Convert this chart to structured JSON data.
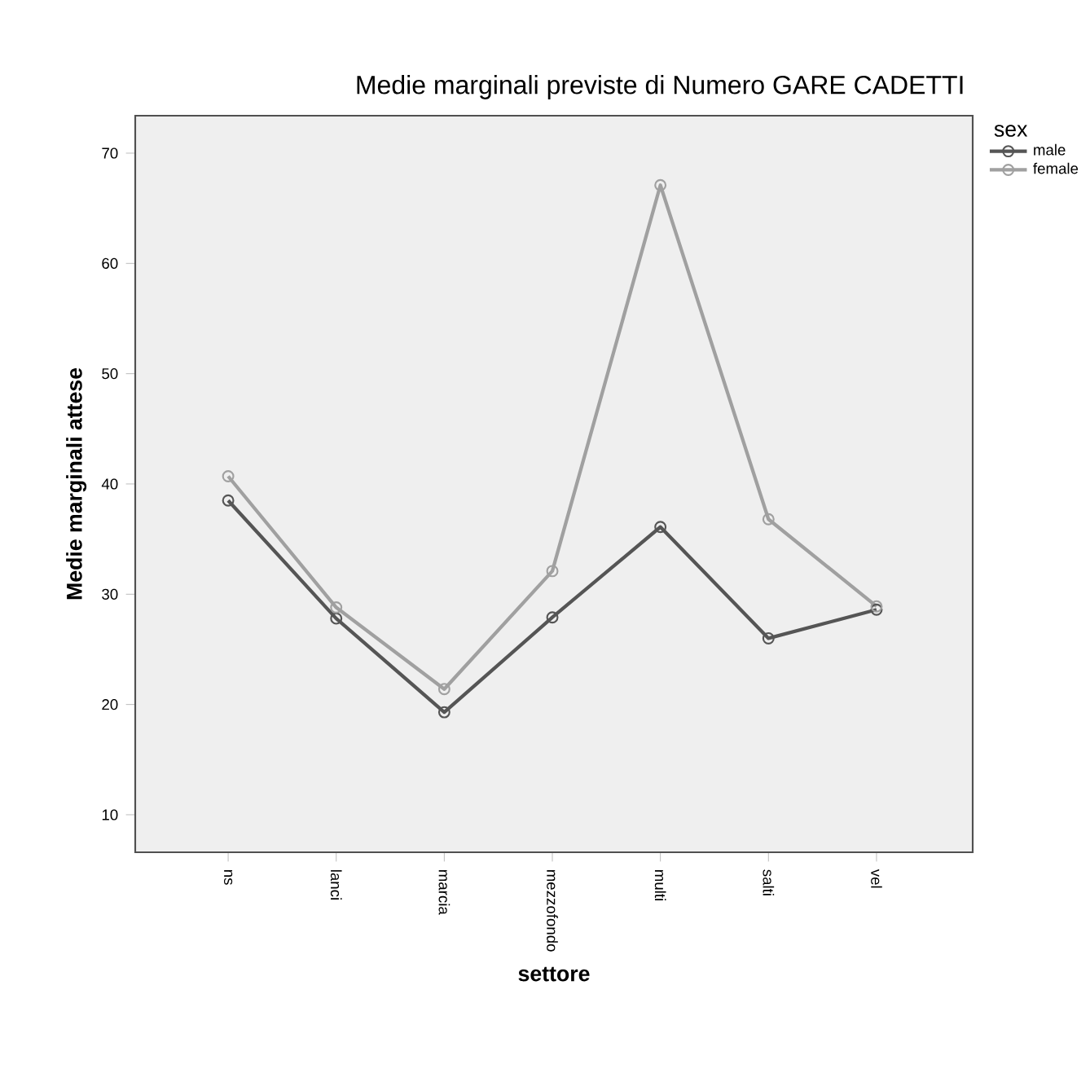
{
  "chart_data": {
    "type": "line",
    "title": "Medie marginali previste di Numero GARE CADETTI",
    "xlabel": "settore",
    "ylabel": "Medie marginali attese",
    "legend_title": "sex",
    "categories": [
      "ns",
      "lanci",
      "marcia",
      "mezzofondo",
      "multi",
      "salti",
      "vel"
    ],
    "series": [
      {
        "name": "male",
        "color": "#555555",
        "values": [
          38.5,
          27.8,
          19.3,
          27.9,
          36.1,
          26.0,
          28.6
        ]
      },
      {
        "name": "female",
        "color": "#a0a0a0",
        "values": [
          40.7,
          28.8,
          21.4,
          32.1,
          67.1,
          36.8,
          28.9
        ]
      }
    ],
    "ylim": [
      6.6,
      73.4
    ],
    "yticks": [
      10,
      20,
      30,
      40,
      50,
      60,
      70
    ],
    "grid": false,
    "legend": "top right",
    "marker": "circle",
    "line_style": "solid"
  }
}
